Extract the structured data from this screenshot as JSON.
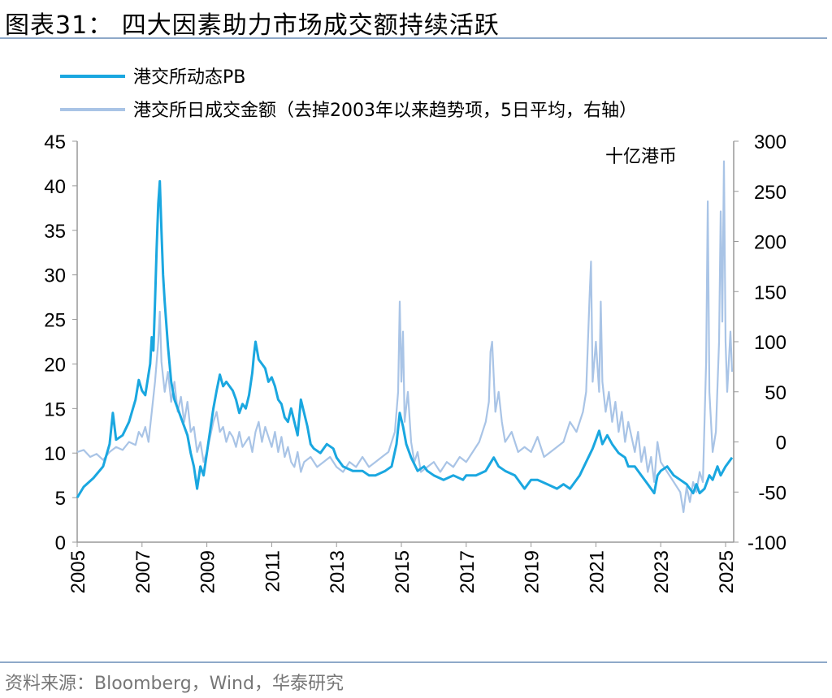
{
  "header": {
    "title": "图表31：  四大因素助力市场成交额持续活跃"
  },
  "footer": {
    "source": "资料来源：Bloomberg，Wind，华泰研究"
  },
  "chart_data": {
    "type": "line",
    "unit_label": "十亿港币",
    "legend": [
      {
        "label": "港交所动态PB",
        "color": "#1aa7e0"
      },
      {
        "label": "港交所日成交金额（去掉2003年以来趋势项，5日平均，右轴）",
        "color": "#a9c4e6"
      }
    ],
    "x_ticks": [
      "2005",
      "2007",
      "2009",
      "2011",
      "2013",
      "2015",
      "2017",
      "2019",
      "2021",
      "2023",
      "2025"
    ],
    "y_left": {
      "min": 0,
      "max": 45,
      "ticks": [
        "0",
        "5",
        "10",
        "15",
        "20",
        "25",
        "30",
        "35",
        "40",
        "45"
      ]
    },
    "y_right": {
      "min": -100,
      "max": 300,
      "ticks": [
        "-100",
        "-50",
        "0",
        "50",
        "100",
        "150",
        "200",
        "250",
        "300"
      ]
    },
    "series": [
      {
        "name": "港交所动态PB",
        "axis": "left",
        "color": "#1aa7e0",
        "points": [
          [
            2005.0,
            5.0
          ],
          [
            2005.2,
            6.2
          ],
          [
            2005.5,
            7.2
          ],
          [
            2005.8,
            8.5
          ],
          [
            2006.0,
            11.0
          ],
          [
            2006.1,
            14.5
          ],
          [
            2006.2,
            11.5
          ],
          [
            2006.4,
            12.0
          ],
          [
            2006.6,
            13.5
          ],
          [
            2006.8,
            16.0
          ],
          [
            2006.9,
            18.2
          ],
          [
            2007.0,
            17.0
          ],
          [
            2007.1,
            16.5
          ],
          [
            2007.25,
            20.0
          ],
          [
            2007.3,
            23.0
          ],
          [
            2007.35,
            21.5
          ],
          [
            2007.4,
            27.0
          ],
          [
            2007.45,
            33.0
          ],
          [
            2007.5,
            38.0
          ],
          [
            2007.55,
            40.5
          ],
          [
            2007.6,
            35.0
          ],
          [
            2007.65,
            30.0
          ],
          [
            2007.7,
            27.0
          ],
          [
            2007.8,
            22.0
          ],
          [
            2007.9,
            18.0
          ],
          [
            2008.0,
            16.0
          ],
          [
            2008.1,
            15.0
          ],
          [
            2008.2,
            14.0
          ],
          [
            2008.3,
            13.0
          ],
          [
            2008.4,
            12.0
          ],
          [
            2008.5,
            10.0
          ],
          [
            2008.6,
            8.5
          ],
          [
            2008.7,
            6.0
          ],
          [
            2008.8,
            8.5
          ],
          [
            2008.9,
            7.5
          ],
          [
            2009.0,
            10.0
          ],
          [
            2009.1,
            12.5
          ],
          [
            2009.2,
            15.0
          ],
          [
            2009.3,
            17.0
          ],
          [
            2009.4,
            18.8
          ],
          [
            2009.5,
            17.5
          ],
          [
            2009.6,
            18.0
          ],
          [
            2009.8,
            17.0
          ],
          [
            2009.9,
            16.0
          ],
          [
            2010.0,
            14.5
          ],
          [
            2010.1,
            15.5
          ],
          [
            2010.2,
            15.0
          ],
          [
            2010.3,
            16.5
          ],
          [
            2010.4,
            19.0
          ],
          [
            2010.45,
            21.0
          ],
          [
            2010.5,
            22.5
          ],
          [
            2010.6,
            20.5
          ],
          [
            2010.7,
            20.0
          ],
          [
            2010.8,
            19.5
          ],
          [
            2010.9,
            18.0
          ],
          [
            2011.0,
            18.5
          ],
          [
            2011.1,
            17.5
          ],
          [
            2011.2,
            16.0
          ],
          [
            2011.3,
            15.5
          ],
          [
            2011.4,
            14.0
          ],
          [
            2011.5,
            13.5
          ],
          [
            2011.6,
            15.0
          ],
          [
            2011.7,
            13.5
          ],
          [
            2011.8,
            12.0
          ],
          [
            2011.9,
            16.0
          ],
          [
            2012.0,
            14.5
          ],
          [
            2012.1,
            13.0
          ],
          [
            2012.2,
            11.0
          ],
          [
            2012.3,
            10.5
          ],
          [
            2012.5,
            10.0
          ],
          [
            2012.7,
            11.0
          ],
          [
            2012.9,
            10.5
          ],
          [
            2013.0,
            9.5
          ],
          [
            2013.2,
            8.5
          ],
          [
            2013.5,
            8.0
          ],
          [
            2013.8,
            8.0
          ],
          [
            2014.0,
            7.5
          ],
          [
            2014.2,
            7.5
          ],
          [
            2014.5,
            8.0
          ],
          [
            2014.7,
            8.5
          ],
          [
            2014.85,
            11.0
          ],
          [
            2014.95,
            14.5
          ],
          [
            2015.05,
            13.0
          ],
          [
            2015.15,
            11.0
          ],
          [
            2015.3,
            9.5
          ],
          [
            2015.5,
            8.0
          ],
          [
            2015.7,
            8.5
          ],
          [
            2015.8,
            8.0
          ],
          [
            2016.0,
            7.5
          ],
          [
            2016.3,
            7.0
          ],
          [
            2016.6,
            7.5
          ],
          [
            2016.9,
            7.0
          ],
          [
            2017.0,
            7.5
          ],
          [
            2017.3,
            7.5
          ],
          [
            2017.6,
            8.0
          ],
          [
            2017.85,
            9.5
          ],
          [
            2018.0,
            8.5
          ],
          [
            2018.2,
            8.0
          ],
          [
            2018.5,
            7.5
          ],
          [
            2018.8,
            6.0
          ],
          [
            2019.0,
            7.0
          ],
          [
            2019.2,
            7.0
          ],
          [
            2019.5,
            6.5
          ],
          [
            2019.8,
            6.0
          ],
          [
            2020.0,
            6.5
          ],
          [
            2020.2,
            6.0
          ],
          [
            2020.5,
            7.5
          ],
          [
            2020.7,
            9.0
          ],
          [
            2020.9,
            10.5
          ],
          [
            2021.0,
            11.5
          ],
          [
            2021.1,
            12.5
          ],
          [
            2021.2,
            11.0
          ],
          [
            2021.35,
            12.0
          ],
          [
            2021.5,
            11.0
          ],
          [
            2021.7,
            10.0
          ],
          [
            2021.9,
            9.5
          ],
          [
            2022.0,
            8.5
          ],
          [
            2022.2,
            8.5
          ],
          [
            2022.4,
            7.5
          ],
          [
            2022.6,
            6.5
          ],
          [
            2022.8,
            5.5
          ],
          [
            2022.9,
            7.5
          ],
          [
            2023.0,
            8.0
          ],
          [
            2023.2,
            8.5
          ],
          [
            2023.4,
            7.5
          ],
          [
            2023.6,
            7.0
          ],
          [
            2023.8,
            6.5
          ],
          [
            2024.0,
            5.5
          ],
          [
            2024.1,
            6.5
          ],
          [
            2024.2,
            5.5
          ],
          [
            2024.35,
            6.0
          ],
          [
            2024.5,
            7.5
          ],
          [
            2024.6,
            7.0
          ],
          [
            2024.75,
            8.5
          ],
          [
            2024.85,
            7.5
          ],
          [
            2025.0,
            8.5
          ],
          [
            2025.1,
            9.0
          ],
          [
            2025.2,
            9.5
          ]
        ]
      },
      {
        "name": "港交所日成交金额（去掉2003年以来趋势项，5日平均，右轴）",
        "axis": "right",
        "color": "#a9c4e6",
        "points": [
          [
            2005.0,
            -10
          ],
          [
            2005.2,
            -8
          ],
          [
            2005.4,
            -15
          ],
          [
            2005.6,
            -12
          ],
          [
            2005.8,
            -18
          ],
          [
            2006.0,
            -10
          ],
          [
            2006.2,
            -5
          ],
          [
            2006.4,
            -8
          ],
          [
            2006.6,
            0
          ],
          [
            2006.8,
            -3
          ],
          [
            2006.9,
            10
          ],
          [
            2007.0,
            5
          ],
          [
            2007.1,
            15
          ],
          [
            2007.2,
            0
          ],
          [
            2007.3,
            30
          ],
          [
            2007.4,
            60
          ],
          [
            2007.5,
            100
          ],
          [
            2007.55,
            130
          ],
          [
            2007.6,
            80
          ],
          [
            2007.7,
            50
          ],
          [
            2007.8,
            70
          ],
          [
            2007.9,
            40
          ],
          [
            2008.0,
            60
          ],
          [
            2008.1,
            30
          ],
          [
            2008.2,
            45
          ],
          [
            2008.3,
            20
          ],
          [
            2008.4,
            40
          ],
          [
            2008.5,
            10
          ],
          [
            2008.6,
            15
          ],
          [
            2008.7,
            -10
          ],
          [
            2008.8,
            0
          ],
          [
            2008.9,
            -20
          ],
          [
            2009.0,
            -10
          ],
          [
            2009.1,
            5
          ],
          [
            2009.2,
            20
          ],
          [
            2009.3,
            30
          ],
          [
            2009.4,
            10
          ],
          [
            2009.5,
            15
          ],
          [
            2009.6,
            0
          ],
          [
            2009.7,
            10
          ],
          [
            2009.8,
            5
          ],
          [
            2009.9,
            -5
          ],
          [
            2010.0,
            10
          ],
          [
            2010.1,
            -5
          ],
          [
            2010.2,
            0
          ],
          [
            2010.3,
            5
          ],
          [
            2010.4,
            -10
          ],
          [
            2010.5,
            10
          ],
          [
            2010.6,
            20
          ],
          [
            2010.7,
            0
          ],
          [
            2010.8,
            15
          ],
          [
            2010.9,
            5
          ],
          [
            2011.0,
            -5
          ],
          [
            2011.1,
            10
          ],
          [
            2011.2,
            -10
          ],
          [
            2011.3,
            5
          ],
          [
            2011.4,
            -15
          ],
          [
            2011.5,
            -5
          ],
          [
            2011.6,
            -20
          ],
          [
            2011.7,
            -25
          ],
          [
            2011.8,
            -10
          ],
          [
            2011.9,
            -30
          ],
          [
            2012.0,
            -20
          ],
          [
            2012.2,
            -15
          ],
          [
            2012.4,
            -25
          ],
          [
            2012.6,
            -20
          ],
          [
            2012.8,
            -15
          ],
          [
            2013.0,
            -25
          ],
          [
            2013.2,
            -30
          ],
          [
            2013.4,
            -20
          ],
          [
            2013.6,
            -25
          ],
          [
            2013.8,
            -15
          ],
          [
            2014.0,
            -25
          ],
          [
            2014.2,
            -20
          ],
          [
            2014.4,
            -15
          ],
          [
            2014.6,
            -10
          ],
          [
            2014.8,
            10
          ],
          [
            2014.9,
            50
          ],
          [
            2014.95,
            140
          ],
          [
            2015.0,
            60
          ],
          [
            2015.05,
            110
          ],
          [
            2015.1,
            20
          ],
          [
            2015.2,
            50
          ],
          [
            2015.3,
            0
          ],
          [
            2015.4,
            -20
          ],
          [
            2015.5,
            -10
          ],
          [
            2015.6,
            -30
          ],
          [
            2015.8,
            -25
          ],
          [
            2016.0,
            -20
          ],
          [
            2016.2,
            -30
          ],
          [
            2016.4,
            -20
          ],
          [
            2016.6,
            -25
          ],
          [
            2016.8,
            -15
          ],
          [
            2017.0,
            -20
          ],
          [
            2017.2,
            -10
          ],
          [
            2017.4,
            0
          ],
          [
            2017.6,
            20
          ],
          [
            2017.7,
            40
          ],
          [
            2017.75,
            90
          ],
          [
            2017.8,
            100
          ],
          [
            2017.9,
            30
          ],
          [
            2018.0,
            50
          ],
          [
            2018.1,
            20
          ],
          [
            2018.2,
            0
          ],
          [
            2018.4,
            10
          ],
          [
            2018.6,
            -10
          ],
          [
            2018.8,
            -5
          ],
          [
            2019.0,
            -10
          ],
          [
            2019.2,
            5
          ],
          [
            2019.4,
            -15
          ],
          [
            2019.6,
            -10
          ],
          [
            2019.8,
            -5
          ],
          [
            2020.0,
            0
          ],
          [
            2020.2,
            20
          ],
          [
            2020.4,
            10
          ],
          [
            2020.6,
            30
          ],
          [
            2020.7,
            50
          ],
          [
            2020.8,
            140
          ],
          [
            2020.85,
            180
          ],
          [
            2020.9,
            60
          ],
          [
            2021.0,
            100
          ],
          [
            2021.1,
            50
          ],
          [
            2021.15,
            140
          ],
          [
            2021.2,
            60
          ],
          [
            2021.3,
            30
          ],
          [
            2021.4,
            50
          ],
          [
            2021.5,
            20
          ],
          [
            2021.6,
            40
          ],
          [
            2021.7,
            10
          ],
          [
            2021.8,
            30
          ],
          [
            2021.9,
            0
          ],
          [
            2022.0,
            20
          ],
          [
            2022.2,
            -10
          ],
          [
            2022.3,
            10
          ],
          [
            2022.4,
            -20
          ],
          [
            2022.5,
            -5
          ],
          [
            2022.6,
            -30
          ],
          [
            2022.7,
            -15
          ],
          [
            2022.8,
            -40
          ],
          [
            2022.9,
            0
          ],
          [
            2023.0,
            -20
          ],
          [
            2023.2,
            -30
          ],
          [
            2023.4,
            -40
          ],
          [
            2023.6,
            -50
          ],
          [
            2023.7,
            -70
          ],
          [
            2023.8,
            -45
          ],
          [
            2023.9,
            -60
          ],
          [
            2024.0,
            -40
          ],
          [
            2024.1,
            -50
          ],
          [
            2024.2,
            -30
          ],
          [
            2024.3,
            -40
          ],
          [
            2024.4,
            80
          ],
          [
            2024.45,
            240
          ],
          [
            2024.5,
            50
          ],
          [
            2024.6,
            -10
          ],
          [
            2024.7,
            10
          ],
          [
            2024.8,
            100
          ],
          [
            2024.85,
            230
          ],
          [
            2024.9,
            120
          ],
          [
            2024.95,
            280
          ],
          [
            2025.0,
            100
          ],
          [
            2025.05,
            50
          ],
          [
            2025.1,
            80
          ],
          [
            2025.15,
            110
          ],
          [
            2025.2,
            70
          ]
        ]
      }
    ]
  }
}
